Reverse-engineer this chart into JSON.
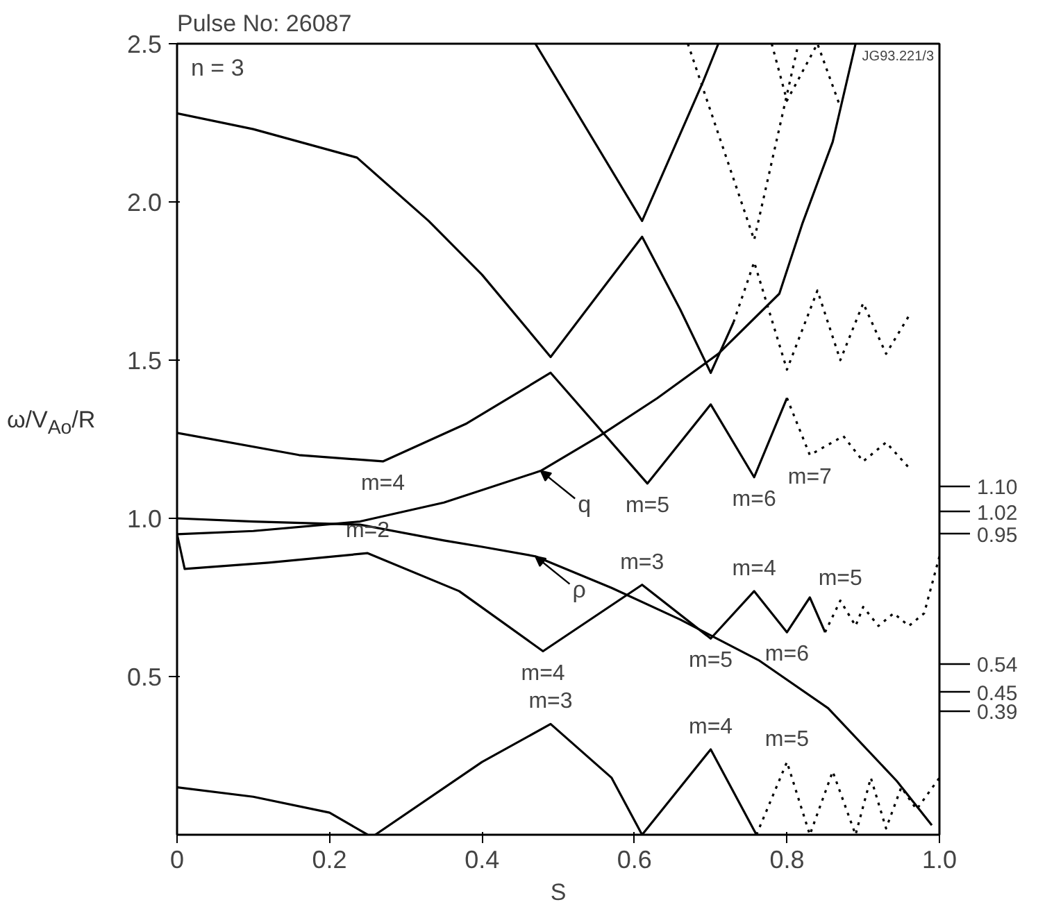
{
  "chart_data": {
    "type": "line",
    "title": "Pulse No: 26087",
    "xlabel": "S",
    "ylabel": "ω/V$_{Ao}$/R",
    "xlim": [
      0,
      1.0
    ],
    "ylim": [
      0,
      2.5
    ],
    "xticks": [
      0,
      0.2,
      0.4,
      0.6,
      0.8,
      {
        "value": 1,
        "label": "1.0"
      }
    ],
    "yticks": [
      0.5,
      {
        "value": 1,
        "label": "1.0"
      },
      1.5,
      {
        "value": 2,
        "label": "2.0"
      },
      2.5
    ],
    "series": [
      {
        "color": "#000000",
        "line_style": "solid",
        "x": [
          0,
          0.1,
          0.236,
          0.33,
          0.4,
          0.49,
          0.55,
          0.61,
          0.66,
          0.7,
          0.73
        ],
        "values": [
          2.28,
          2.23,
          2.14,
          1.94,
          1.77,
          1.51,
          1.7,
          1.89,
          1.66,
          1.46,
          1.62
        ]
      },
      {
        "color": "#000000",
        "line_style": "dotted",
        "x": [
          0.73,
          0.757,
          0.8,
          0.84,
          0.87,
          0.9,
          0.93,
          0.96
        ],
        "values": [
          1.62,
          1.81,
          1.47,
          1.72,
          1.5,
          1.68,
          1.52,
          1.64
        ]
      },
      {
        "color": "#000000",
        "line_style": "solid",
        "x": [
          0,
          0.16,
          0.27,
          0.38,
          0.49,
          0.617,
          0.7,
          0.757,
          0.8
        ],
        "values": [
          1.27,
          1.2,
          1.18,
          1.3,
          1.46,
          1.11,
          1.36,
          1.13,
          1.38
        ]
      },
      {
        "color": "#000000",
        "line_style": "dotted",
        "x": [
          0.8,
          0.83,
          0.874,
          0.9,
          0.93,
          0.96
        ],
        "values": [
          1.38,
          1.2,
          1.26,
          1.18,
          1.24,
          1.16
        ]
      },
      {
        "color": "#000000",
        "line_style": "solid",
        "x": [
          0.47,
          0.61,
          0.69,
          0.71
        ],
        "values": [
          2.5,
          1.94,
          2.38,
          2.5
        ]
      },
      {
        "color": "#000000",
        "line_style": "dotted",
        "x": [
          0.67,
          0.757,
          0.815
        ],
        "values": [
          2.5,
          1.88,
          2.5
        ]
      },
      {
        "color": "#000000",
        "line_style": "dotted",
        "x": [
          0.78,
          0.8,
          0.84,
          0.87
        ],
        "values": [
          2.5,
          2.32,
          2.5,
          2.3
        ]
      },
      {
        "color": "#000000",
        "line_style": "solid",
        "x": [
          0,
          0.1,
          0.24,
          0.35,
          0.477,
          0.554,
          0.63,
          0.71,
          0.79,
          0.82,
          0.86,
          0.89
        ],
        "values": [
          0.95,
          0.96,
          0.99,
          1.05,
          1.15,
          1.26,
          1.38,
          1.52,
          1.71,
          1.93,
          2.19,
          2.5
        ]
      },
      {
        "color": "#000000",
        "line_style": "solid",
        "x": [
          0,
          0.1,
          0.24,
          0.35,
          0.4,
          0.47,
          0.57,
          0.66,
          0.764,
          0.854,
          0.944,
          0.99
        ],
        "values": [
          1.0,
          0.99,
          0.98,
          0.93,
          0.91,
          0.88,
          0.78,
          0.68,
          0.55,
          0.4,
          0.17,
          0.03
        ]
      },
      {
        "color": "#000000",
        "line_style": "solid",
        "x": [
          0,
          0.01,
          0.12,
          0.25,
          0.37,
          0.48,
          0.61,
          0.7,
          0.757,
          0.8,
          0.83,
          0.85
        ],
        "values": [
          0.95,
          0.84,
          0.86,
          0.89,
          0.77,
          0.58,
          0.79,
          0.62,
          0.77,
          0.64,
          0.75,
          0.64
        ]
      },
      {
        "color": "#000000",
        "line_style": "dotted",
        "x": [
          0.85,
          0.87,
          0.89,
          0.9,
          0.92,
          0.94,
          0.96,
          0.98,
          1.0
        ],
        "values": [
          0.64,
          0.74,
          0.66,
          0.72,
          0.66,
          0.7,
          0.66,
          0.7,
          0.88
        ]
      },
      {
        "color": "#000000",
        "line_style": "solid",
        "x": [
          0,
          0.1,
          0.2,
          0.25
        ],
        "values": [
          0.15,
          0.12,
          0.07,
          0
        ]
      },
      {
        "color": "#000000",
        "line_style": "solid",
        "x": [
          0.26,
          0.4,
          0.49,
          0.57,
          0.61,
          0.7,
          0.76
        ],
        "values": [
          0,
          0.23,
          0.35,
          0.18,
          0,
          0.27,
          0
        ]
      },
      {
        "color": "#000000",
        "line_style": "dotted",
        "x": [
          0.76,
          0.8,
          0.83,
          0.86,
          0.89,
          0.91,
          0.93,
          0.95,
          0.97,
          1.0
        ],
        "values": [
          0,
          0.23,
          0,
          0.2,
          0,
          0.18,
          0.02,
          0.15,
          0.08,
          0.18
        ]
      }
    ],
    "y2lim": [
      0,
      2.5
    ],
    "y2ticks": [
      {
        "value": 1.1,
        "label": "1.10"
      },
      {
        "value": 1.02,
        "label": "1.02"
      },
      {
        "value": 0.95,
        "label": "0.95"
      },
      {
        "value": 0.54,
        "label": "0.54"
      },
      {
        "value": 0.45,
        "label": "0.45"
      },
      {
        "value": 0.39,
        "label": "0.39"
      }
    ],
    "annotations": [
      "n = 3",
      "JG93.221/3",
      {
        "text": "m=4",
        "x": 0.27,
        "y": 1.18
      },
      {
        "text": "m=2",
        "x": 0.25,
        "y": 0.89
      },
      {
        "text": "m=4",
        "x": 0.48,
        "y": 0.58
      },
      {
        "text": "m=3",
        "x": 0.49,
        "y": 0.35
      },
      {
        "text": "m=5",
        "x": 0.617,
        "y": 1.11
      },
      {
        "text": "m=6",
        "x": 0.757,
        "y": 1.13
      },
      {
        "text": "m=7",
        "x": 0.83,
        "y": 1.2
      },
      {
        "text": "m=3",
        "x": 0.61,
        "y": 0.79
      },
      {
        "text": "m=4",
        "x": 0.757,
        "y": 0.77
      },
      {
        "text": "m=5",
        "x": 0.87,
        "y": 0.74
      },
      {
        "text": "m=5",
        "x": 0.7,
        "y": 0.62
      },
      {
        "text": "m=6",
        "x": 0.8,
        "y": 0.64
      },
      {
        "text": "m=4",
        "x": 0.7,
        "y": 0.27
      },
      {
        "text": "m=5",
        "x": 0.8,
        "y": 0.23
      },
      {
        "text": "q",
        "x": 0.477,
        "y": 1.15
      },
      {
        "text": "ρ",
        "x": 0.47,
        "y": 0.88
      }
    ]
  }
}
